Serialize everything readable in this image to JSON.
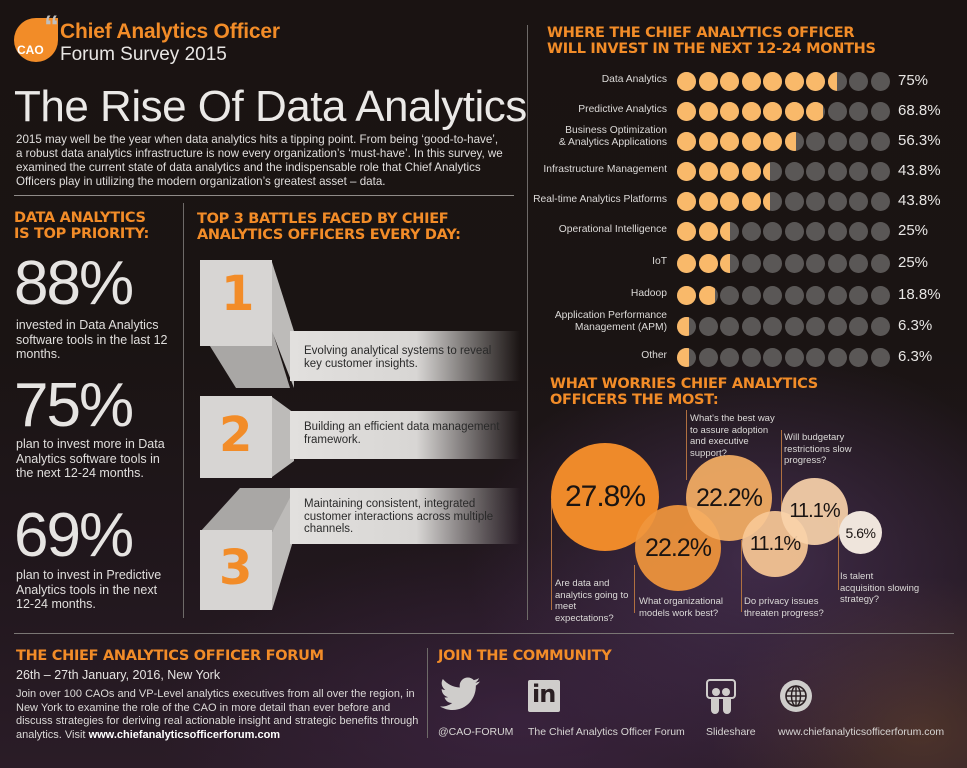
{
  "header": {
    "logo_badge": "CAO",
    "brand_title": "Chief Analytics Officer",
    "brand_subtitle": "Forum Survey 2015",
    "main_title": "The Rise Of Data Analytics",
    "intro": "2015 may well be the year when data analytics hits a tipping point. From being ‘good-to-have’, a robust data analytics infrastructure is now every organization’s ‘must-have’. In this survey, we examined the current state of data analytics and the indispensable role that Chief Analytics Officers play in utilizing the modern organization’s greatest asset – data."
  },
  "priority": {
    "heading_line1": "DATA ANALYTICS",
    "heading_line2": "IS TOP PRIORITY:",
    "stats": [
      {
        "value": "88%",
        "text": "invested in Data Analytics software tools in the last 12 months."
      },
      {
        "value": "75%",
        "text": "plan to invest more in Data Analytics software tools in the next 12-24 months."
      },
      {
        "value": "69%",
        "text": "plan to invest in Predictive Analytics tools in the next 12-24 months."
      }
    ]
  },
  "battles": {
    "heading_line1": "TOP 3 BATTLES FACED BY CHIEF",
    "heading_line2": "ANALYTICS OFFICERS EVERY DAY:",
    "items": [
      {
        "number": "1",
        "text": "Evolving analytical systems to reveal key customer insights."
      },
      {
        "number": "2",
        "text": "Building an efficient data management framework."
      },
      {
        "number": "3",
        "text": "Maintaining consistent, integrated customer interactions across multiple channels."
      }
    ]
  },
  "invest": {
    "heading_line1": "WHERE THE CHIEF ANALYTICS OFFICER",
    "heading_line2": "WILL INVEST IN THE NEXT 12-24 MONTHS",
    "colors": {
      "filled": "#f9b96a",
      "empty": "#5a5756"
    },
    "dots_per_row": 10
  },
  "chart_data": [
    {
      "type": "bar",
      "title": "Where the Chief Analytics Officer will invest in the next 12-24 months",
      "style": "dot-matrix (10 dots, partial fill)",
      "categories": [
        "Data Analytics",
        "Predictive Analytics",
        "Business Optimization & Analytics Applications",
        "Infrastructure Management",
        "Real-time Analytics Platforms",
        "Operational Intelligence",
        "IoT",
        "Hadoop",
        "Application Performance Management (APM)",
        "Other"
      ],
      "values": [
        75,
        68.8,
        56.3,
        43.8,
        43.8,
        25,
        25,
        18.8,
        6.3,
        6.3
      ],
      "labels": [
        "75%",
        "68.8%",
        "56.3%",
        "43.8%",
        "43.8%",
        "25%",
        "25%",
        "18.8%",
        "6.3%",
        "6.3%"
      ],
      "xlabel": "",
      "ylabel": "",
      "ylim": [
        0,
        100
      ]
    },
    {
      "type": "bubble",
      "title": "What worries Chief Analytics Officers the most:",
      "categories": [
        "Are data and analytics going to meet expectations?",
        "What organizational models work best?",
        "What's the best way to assure adoption and executive support?",
        "Do privacy issues threaten progress?",
        "Will budgetary restrictions slow progress?",
        "Is talent acquisition slowing strategy?"
      ],
      "values": [
        27.8,
        22.2,
        22.2,
        11.1,
        11.1,
        5.6
      ],
      "labels": [
        "27.8%",
        "22.2%",
        "22.2%",
        "11.1%",
        "11.1%",
        "5.6%"
      ]
    }
  ],
  "worries": {
    "heading_line1": "WHAT WORRIES CHIEF ANALYTICS",
    "heading_line2": "OFFICERS THE MOST:"
  },
  "forum": {
    "heading": "THE CHIEF ANALYTICS OFFICER FORUM",
    "dates": "26th – 27th January, 2016, New York",
    "body": "Join over 100 CAOs and VP-Level analytics executives from all over the region, in New York to examine the role of the CAO in more detail than ever before and discuss strategies for deriving real actionable insight and strategic benefits through analytics. Visit ",
    "link": "www.chiefanalyticsofficerforum.com"
  },
  "community": {
    "heading": "JOIN THE COMMUNITY",
    "links": [
      {
        "icon": "twitter-icon",
        "label": "@CAO-FORUM"
      },
      {
        "icon": "linkedin-icon",
        "label": "The Chief Analytics Officer Forum"
      },
      {
        "icon": "slideshare-icon",
        "label": "Slideshare"
      },
      {
        "icon": "globe-icon",
        "label": "www.chiefanalyticsofficerforum.com"
      }
    ]
  }
}
